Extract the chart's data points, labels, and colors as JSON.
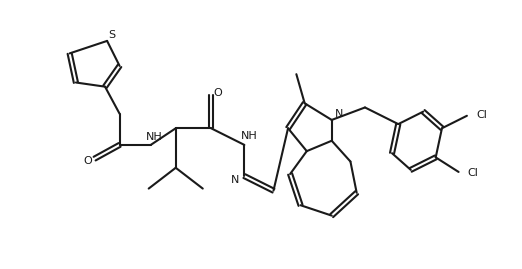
{
  "background_color": "#ffffff",
  "line_color": "#1a1a1a",
  "line_width": 1.5,
  "figsize": [
    5.22,
    2.69
  ],
  "dpi": 100,
  "xlim": [
    0,
    10.5
  ],
  "ylim": [
    3.8,
    10.2
  ]
}
